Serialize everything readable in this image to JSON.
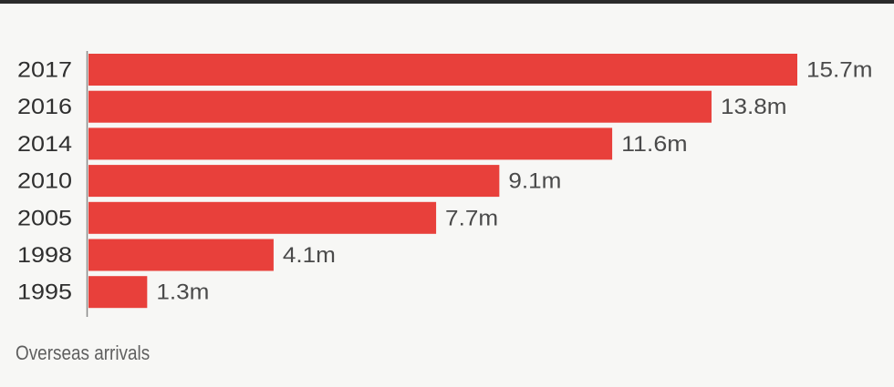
{
  "chart_data": {
    "type": "bar",
    "orientation": "horizontal",
    "categories": [
      "2017",
      "2016",
      "2014",
      "2010",
      "2005",
      "1998",
      "1995"
    ],
    "values": [
      15.7,
      13.8,
      11.6,
      9.1,
      7.7,
      4.1,
      1.3
    ],
    "value_labels": [
      "15.7m",
      "13.8m",
      "11.6m",
      "9.1m",
      "7.7m",
      "4.1m",
      "1.3m"
    ],
    "unit": "m",
    "caption": "Overseas arrivals",
    "xlim": [
      0,
      15.7
    ],
    "grid": false,
    "bar_color": "#e8403b"
  }
}
